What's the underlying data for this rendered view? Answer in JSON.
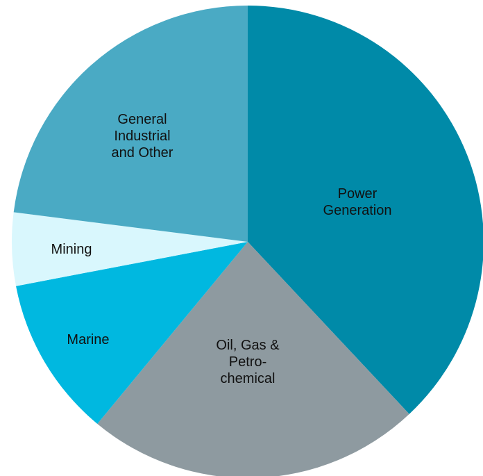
{
  "chart_data": {
    "type": "pie",
    "categories": [
      "Power\nGeneration",
      "Oil, Gas &\nPetro-\nchemical",
      "Marine",
      "Mining",
      "General\nIndustrial\nand Other"
    ],
    "values": [
      38,
      23,
      11,
      5,
      23
    ],
    "colors": [
      "#008aa8",
      "#8e9aa0",
      "#00b8e0",
      "#d9f7fd",
      "#4aaac4"
    ]
  }
}
